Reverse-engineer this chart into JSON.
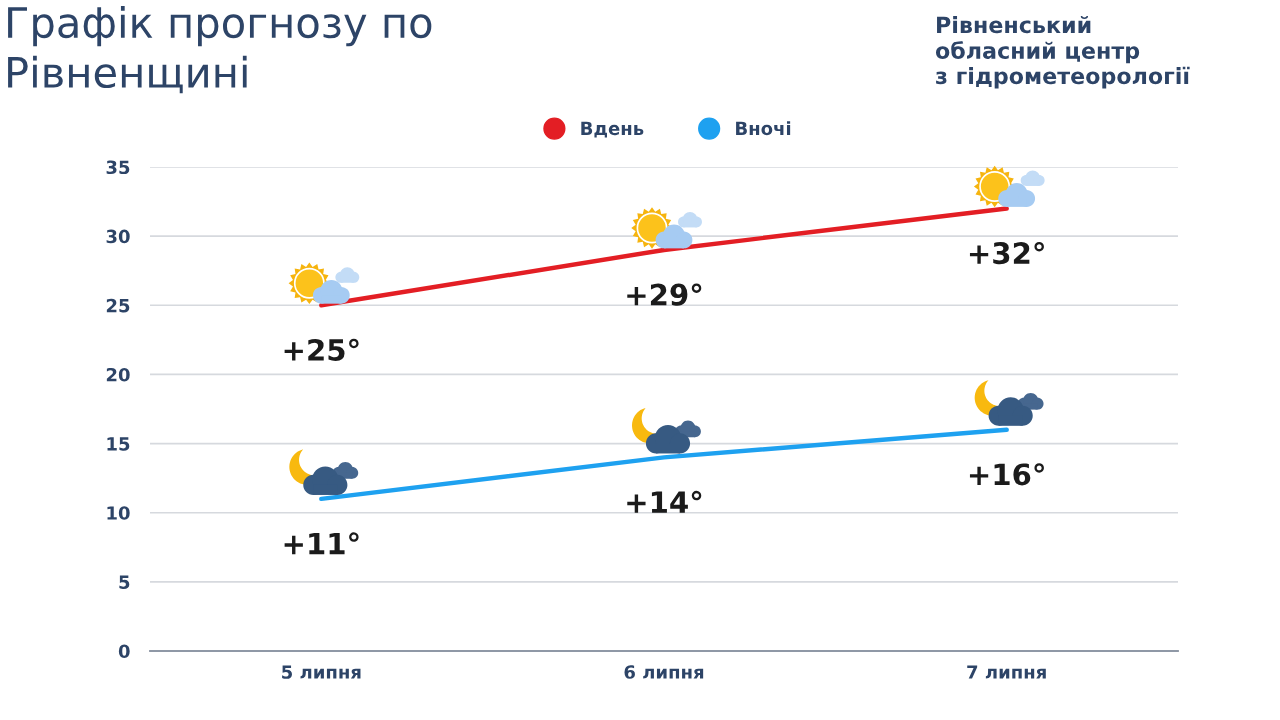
{
  "chart_data": {
    "type": "line",
    "title": "Графік прогнозу по\nРівненщині",
    "annotations": [
      "Рівненський\nобласний центр\nз гідрометеорології"
    ],
    "categories": [
      "5 липня",
      "6 липня",
      "7 липня"
    ],
    "series": [
      {
        "name": "Вдень",
        "color": "#e31e24",
        "values": [
          25,
          29,
          32
        ],
        "value_labels": [
          "+25°",
          "+29°",
          "+32°"
        ]
      },
      {
        "name": "Вночі",
        "color": "#1ea1f0",
        "values": [
          11,
          14,
          16
        ],
        "value_labels": [
          "+11°",
          "+14°",
          "+16°"
        ]
      }
    ],
    "ylim": [
      0,
      35
    ],
    "yticks": [
      0,
      5,
      10,
      15,
      20,
      25,
      30,
      35
    ],
    "grid": "y",
    "legend": "top"
  }
}
